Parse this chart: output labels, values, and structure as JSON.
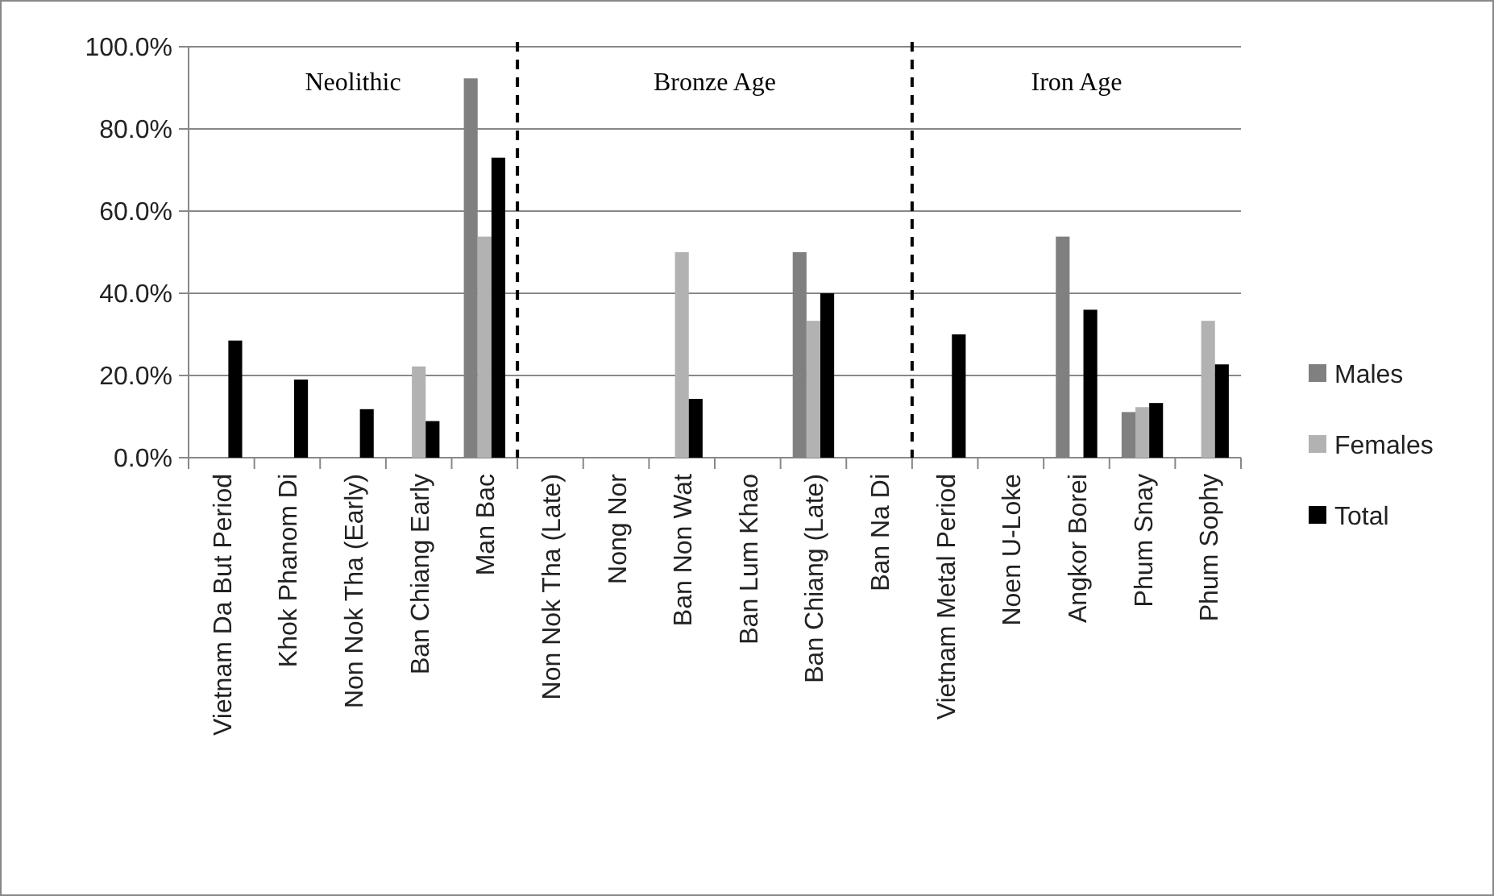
{
  "chart_data": {
    "type": "bar",
    "categories": [
      "Vietnam Da But Period",
      "Khok Phanom Di",
      "Non Nok Tha (Early)",
      "Ban Chiang Early",
      "Man Bac",
      "Non Nok Tha (Late)",
      "Nong Nor",
      "Ban Non Wat",
      "Ban Lum Khao",
      "Ban Chiang (Late)",
      "Ban Na Di",
      "Vietnam Metal Period",
      "Noen U-Loke",
      "Angkor Borei",
      "Phum Snay",
      "Phum Sophy"
    ],
    "series": [
      {
        "name": "Males",
        "color": "#808080",
        "values": [
          null,
          null,
          null,
          null,
          92.3,
          null,
          null,
          null,
          null,
          50,
          null,
          null,
          null,
          53.8,
          11.1,
          null
        ]
      },
      {
        "name": "Females",
        "color": "#b2b2b2",
        "values": [
          null,
          null,
          null,
          22.2,
          53.8,
          null,
          null,
          50,
          null,
          33.3,
          null,
          null,
          null,
          null,
          12.3,
          33.3
        ]
      },
      {
        "name": "Total",
        "color": "#000000",
        "values": [
          28.5,
          19,
          11.8,
          8.9,
          73,
          null,
          null,
          14.3,
          null,
          40,
          null,
          30,
          null,
          36,
          13.3,
          22.7
        ]
      }
    ],
    "ylim": [
      0,
      100
    ],
    "yticks": [
      {
        "value": 0,
        "label": "0.0%"
      },
      {
        "value": 20,
        "label": "20.0%"
      },
      {
        "value": 40,
        "label": "40.0%"
      },
      {
        "value": 60,
        "label": "60.0%"
      },
      {
        "value": 80,
        "label": "80.0%"
      },
      {
        "value": 100,
        "label": "100.0%"
      }
    ],
    "grid": "y",
    "legend": "right",
    "annotations": [
      "Neolithic",
      "Bronze Age",
      "Iron Age"
    ]
  }
}
